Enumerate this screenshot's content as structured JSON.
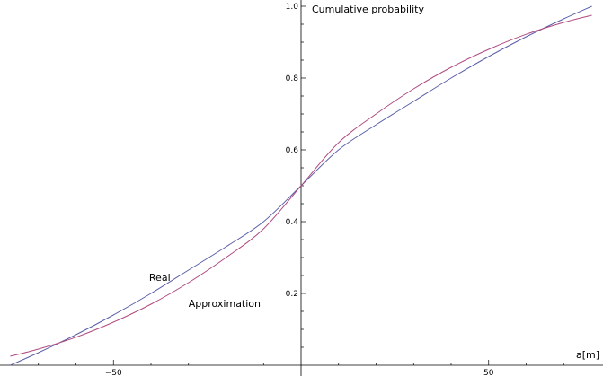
{
  "chart_data": {
    "type": "line",
    "xlabel": "a[m]",
    "ylabel": "Cumulative probability",
    "xlim": [
      -80,
      80
    ],
    "ylim": [
      0,
      1.0
    ],
    "x_ticks": [
      -50,
      50
    ],
    "x_tick_labels": [
      "−50",
      "50"
    ],
    "y_ticks": [
      0.2,
      0.4,
      0.6,
      0.8,
      1.0
    ],
    "y_tick_labels": [
      "0.2",
      "0.4",
      "0.6",
      "0.8",
      "1.0"
    ],
    "grid": false,
    "series": [
      {
        "name": "Real",
        "color": "#5b5fa8",
        "x": [
          -77.5,
          -70,
          -60,
          -50,
          -40,
          -30,
          -20,
          -10,
          0,
          10,
          20,
          30,
          40,
          50,
          60,
          70,
          77.5
        ],
        "y": [
          0.0,
          0.035,
          0.085,
          0.14,
          0.2,
          0.265,
          0.33,
          0.4,
          0.5,
          0.6,
          0.67,
          0.735,
          0.8,
          0.86,
          0.915,
          0.965,
          1.0
        ]
      },
      {
        "name": "Approximation",
        "color": "#b04b80",
        "x": [
          -77.5,
          -70,
          -60,
          -50,
          -40,
          -30,
          -20,
          -10,
          0,
          10,
          20,
          30,
          40,
          50,
          60,
          70,
          77.5
        ],
        "y": [
          0.025,
          0.045,
          0.078,
          0.12,
          0.17,
          0.23,
          0.3,
          0.38,
          0.5,
          0.62,
          0.7,
          0.77,
          0.83,
          0.88,
          0.922,
          0.955,
          0.975
        ]
      }
    ],
    "annotations": [
      {
        "text": "Real",
        "x": -40.5,
        "y": 0.235
      },
      {
        "text": "Approximation",
        "x": -30,
        "y": 0.163
      }
    ]
  }
}
